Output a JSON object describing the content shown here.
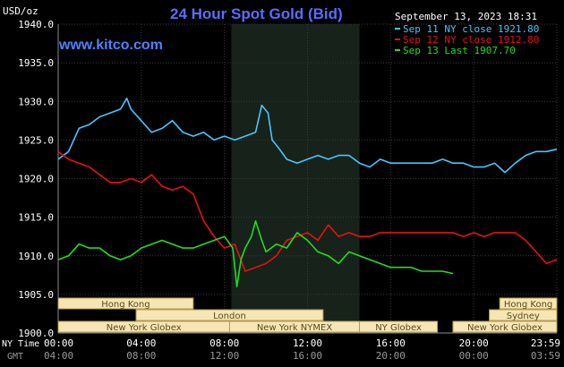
{
  "header": {
    "title": "24 Hour Spot Gold (Bid)",
    "timestamp": "September 13, 2023 18:31",
    "watermark": "www.kitco.com"
  },
  "colors": {
    "background": "#000000",
    "grid": "#3a3a3a",
    "title": "#5a6cff",
    "watermark": "#4e82ff",
    "session_shade": "#17221a",
    "sep11": "#41c8ff",
    "sep12": "#e81010",
    "sep13": "#22dd22",
    "band_fill": "#f5e6b4",
    "band_border": "#b59a55",
    "band_text": "#5a4a1a"
  },
  "chart_data": {
    "type": "line",
    "title": "24 Hour Spot Gold (Bid)",
    "ylabel": "USD/oz",
    "ylim": [
      1900,
      1940
    ],
    "yticks": [
      "1940.0",
      "1935.0",
      "1930.0",
      "1925.0",
      "1920.0",
      "1915.0",
      "1910.0",
      "1905.0",
      "1900.0"
    ],
    "ytick_values": [
      1940,
      1935,
      1930,
      1925,
      1920,
      1915,
      1910,
      1905,
      1900
    ],
    "xlim_hours": [
      0,
      24
    ],
    "xtick_hours": [
      0,
      4,
      8,
      12,
      16,
      20,
      24
    ],
    "xtick_labels_ny": [
      "00:00",
      "04:00",
      "08:00",
      "12:00",
      "16:00",
      "20:00",
      "23:59"
    ],
    "xtick_labels_gmt": [
      "04:00",
      "08:00",
      "12:00",
      "16:00",
      "20:00",
      "00:00",
      "03:59"
    ],
    "row_label_ny": "NY Time",
    "row_label_gmt": "GMT",
    "ny_session_hours": [
      8.333,
      14.5
    ],
    "legend": {
      "position": "top-right",
      "entries": [
        {
          "label": "Sep 11 NY close 1921.80",
          "color": "#41c8ff"
        },
        {
          "label": "Sep 12 NY close 1912.80",
          "color": "#e81010"
        },
        {
          "label": "Sep 13 Last 1907.70",
          "color": "#22dd22"
        }
      ]
    },
    "series": [
      {
        "name": "Sep 11 NY close 1921.80",
        "color": "#41c8ff",
        "x": [
          0,
          0.5,
          1,
          1.5,
          2,
          2.5,
          3,
          3.3,
          3.5,
          4,
          4.5,
          5,
          5.5,
          6,
          6.5,
          7,
          7.5,
          8,
          8.5,
          9,
          9.5,
          9.8,
          10.1,
          10.3,
          10.6,
          11,
          11.5,
          12,
          12.5,
          13,
          13.5,
          14,
          14.5,
          15,
          15.5,
          16,
          16.5,
          17,
          17.5,
          18,
          18.5,
          19,
          19.5,
          20,
          20.5,
          21,
          21.5,
          22,
          22.5,
          23,
          23.5,
          24
        ],
        "y": [
          1922.5,
          1923.5,
          1926.5,
          1927,
          1928,
          1928.5,
          1929,
          1930.4,
          1929,
          1927.5,
          1926,
          1926.5,
          1927.5,
          1926,
          1925.5,
          1926,
          1925,
          1925.5,
          1925,
          1925.5,
          1926,
          1929.5,
          1928.5,
          1925,
          1924,
          1922.5,
          1922,
          1922.5,
          1923,
          1922.5,
          1923,
          1923,
          1922,
          1921.5,
          1922.5,
          1922,
          1922,
          1922,
          1922,
          1922,
          1922.5,
          1922,
          1922,
          1921.5,
          1921.5,
          1922,
          1920.8,
          1922,
          1923,
          1923.5,
          1923.5,
          1923.8
        ]
      },
      {
        "name": "Sep 12 NY close 1912.80",
        "color": "#e81010",
        "x": [
          0,
          0.5,
          1,
          1.5,
          2,
          2.5,
          3,
          3.5,
          4,
          4.5,
          5,
          5.5,
          6,
          6.5,
          7,
          7.5,
          8,
          8.5,
          9,
          9.5,
          10,
          10.5,
          11,
          11.5,
          12,
          12.5,
          13,
          13.5,
          14,
          14.5,
          15,
          15.5,
          16,
          16.5,
          17,
          17.5,
          18,
          18.5,
          19,
          19.5,
          20,
          20.5,
          21,
          21.5,
          22,
          22.5,
          23,
          23.5,
          24
        ],
        "y": [
          1923.5,
          1922.5,
          1922,
          1921.5,
          1920.5,
          1919.5,
          1919.5,
          1920,
          1919.5,
          1920.5,
          1919,
          1918.5,
          1919,
          1918,
          1914.5,
          1912.5,
          1911,
          1911.5,
          1908,
          1908.5,
          1909,
          1910,
          1912,
          1912.5,
          1913,
          1912,
          1914,
          1912.5,
          1913,
          1912.5,
          1912.5,
          1913,
          1913,
          1913,
          1913,
          1913,
          1913,
          1913,
          1913,
          1912.5,
          1913,
          1912.5,
          1913,
          1913,
          1913,
          1912,
          1910.5,
          1909,
          1909.5
        ]
      },
      {
        "name": "Sep 13 Last 1907.70",
        "color": "#22dd22",
        "x": [
          0,
          0.5,
          1,
          1.5,
          2,
          2.5,
          3,
          3.5,
          4,
          4.5,
          5,
          5.5,
          6,
          6.5,
          7,
          7.5,
          8,
          8.4,
          8.6,
          8.8,
          9,
          9.3,
          9.5,
          9.8,
          10,
          10.5,
          11,
          11.5,
          12,
          12.5,
          13,
          13.5,
          14,
          14.5,
          15,
          15.5,
          16,
          16.5,
          17,
          17.5,
          18,
          18.5,
          19
        ],
        "y": [
          1909.5,
          1910,
          1911.5,
          1911,
          1911,
          1910,
          1909.5,
          1910,
          1911,
          1911.5,
          1912,
          1911.5,
          1911,
          1911,
          1911.5,
          1912,
          1912.5,
          1911,
          1906,
          1909.5,
          1911,
          1912.5,
          1914.5,
          1912,
          1910.5,
          1911.5,
          1911,
          1913,
          1912,
          1910.5,
          1910,
          1909,
          1910.5,
          1910,
          1909.5,
          1909,
          1908.5,
          1908.5,
          1908.5,
          1908,
          1908,
          1908,
          1907.7
        ]
      }
    ],
    "market_bands": [
      {
        "label": "Hong Kong",
        "row": 0,
        "start": 0,
        "end": 6.5
      },
      {
        "label": "London",
        "row": 1,
        "start": 3.75,
        "end": 12.75
      },
      {
        "label": "New York Globex",
        "row": 2,
        "start": 0,
        "end": 8.25
      },
      {
        "label": "New York NYMEX",
        "row": 2,
        "start": 8.25,
        "end": 14.5
      },
      {
        "label": "NY Globex",
        "row": 2,
        "start": 14.5,
        "end": 18.25
      },
      {
        "label": "Hong Kong",
        "row": 0,
        "start": 21.25,
        "end": 24
      },
      {
        "label": "Sydney",
        "row": 1,
        "start": 20.75,
        "end": 24
      },
      {
        "label": "New York Globex",
        "row": 2,
        "start": 19,
        "end": 24
      }
    ]
  }
}
